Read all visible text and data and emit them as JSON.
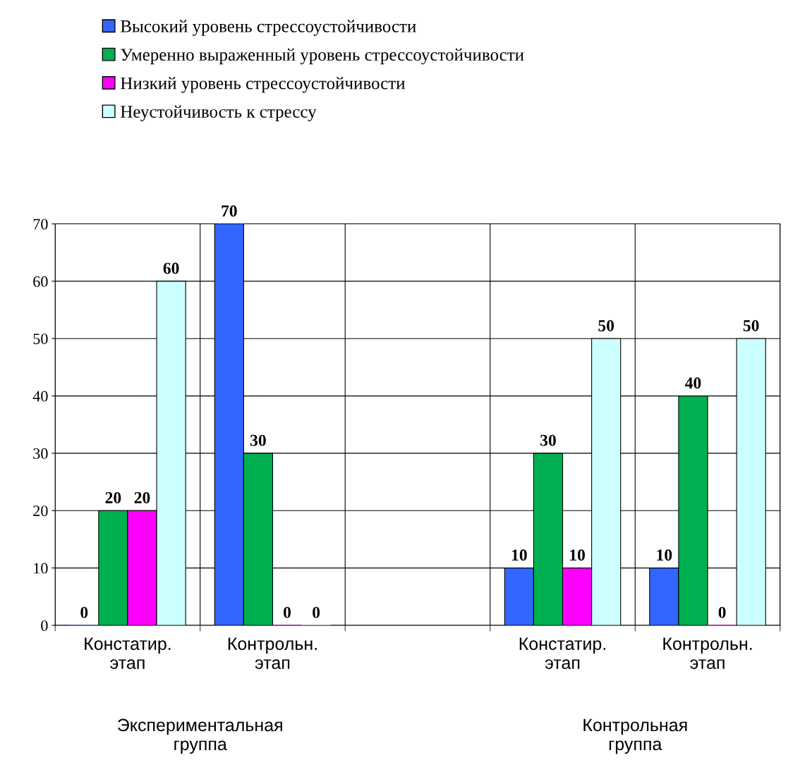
{
  "chart_data": {
    "type": "bar",
    "categories": [
      "Констатир.\nэтап",
      "Контрольн.\nэтап",
      null,
      "Констатир.\nэтап",
      "Контрольн.\nэтап"
    ],
    "series": [
      {
        "name": "Высокий уровень стрессоустойчивости",
        "color": "#3366ff",
        "values": [
          0,
          70,
          null,
          10,
          10
        ]
      },
      {
        "name": "Умеренно выраженный уровень стрессоустойчивости",
        "color": "#00b050",
        "values": [
          20,
          30,
          null,
          30,
          40
        ]
      },
      {
        "name": "Низкий уровень стрессоустойчивости",
        "color": "#ff00ff",
        "values": [
          20,
          0,
          null,
          10,
          0
        ]
      },
      {
        "name": "Неустойчивость к стрессу",
        "color": "#ccffff",
        "values": [
          60,
          0,
          null,
          50,
          50
        ]
      }
    ],
    "annotations": [
      "Экспериментальная\nгруппа",
      "Контрольная\nгруппа"
    ],
    "ylim": [
      0,
      70
    ],
    "yticks": [
      0,
      10,
      20,
      30,
      40,
      50,
      60,
      70
    ],
    "grid": true,
    "legend": "top",
    "data_labels": true
  }
}
